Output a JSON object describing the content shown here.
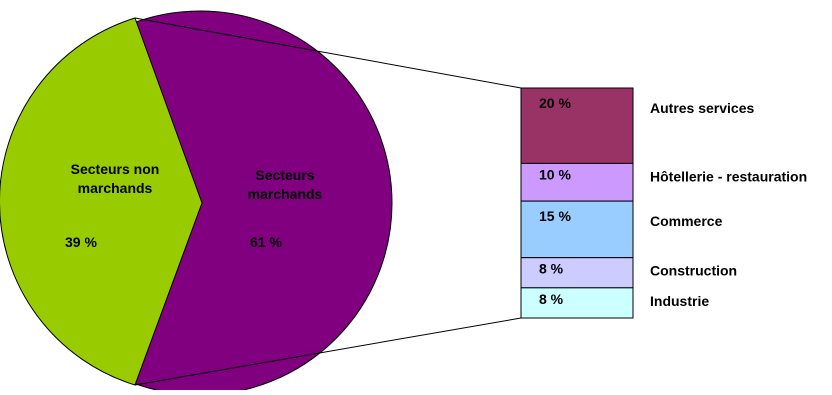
{
  "chart_data": {
    "type": "pie",
    "title": "",
    "pie": {
      "slices": [
        {
          "label_lines": [
            "Secteurs non",
            "marchands"
          ],
          "value": 39,
          "value_label": "39 %",
          "color": "#99cc00"
        },
        {
          "label_lines": [
            "Secteurs",
            "marchands"
          ],
          "value": 61,
          "value_label": "61 %",
          "color": "#800080"
        }
      ]
    },
    "breakdown": {
      "of_slice": "Secteurs marchands",
      "type": "stacked-bar",
      "segments": [
        {
          "label": "Autres services",
          "value": 20,
          "value_label": "20 %",
          "color": "#993366"
        },
        {
          "label": "Hôtellerie - restauration",
          "value": 10,
          "value_label": "10 %",
          "color": "#cc99ff"
        },
        {
          "label": "Commerce",
          "value": 15,
          "value_label": "15 %",
          "color": "#99ccff"
        },
        {
          "label": "Construction",
          "value": 8,
          "value_label": "8 %",
          "color": "#ccccff"
        },
        {
          "label": "Industrie",
          "value": 8,
          "value_label": "8 %",
          "color": "#ccffff"
        }
      ]
    }
  }
}
